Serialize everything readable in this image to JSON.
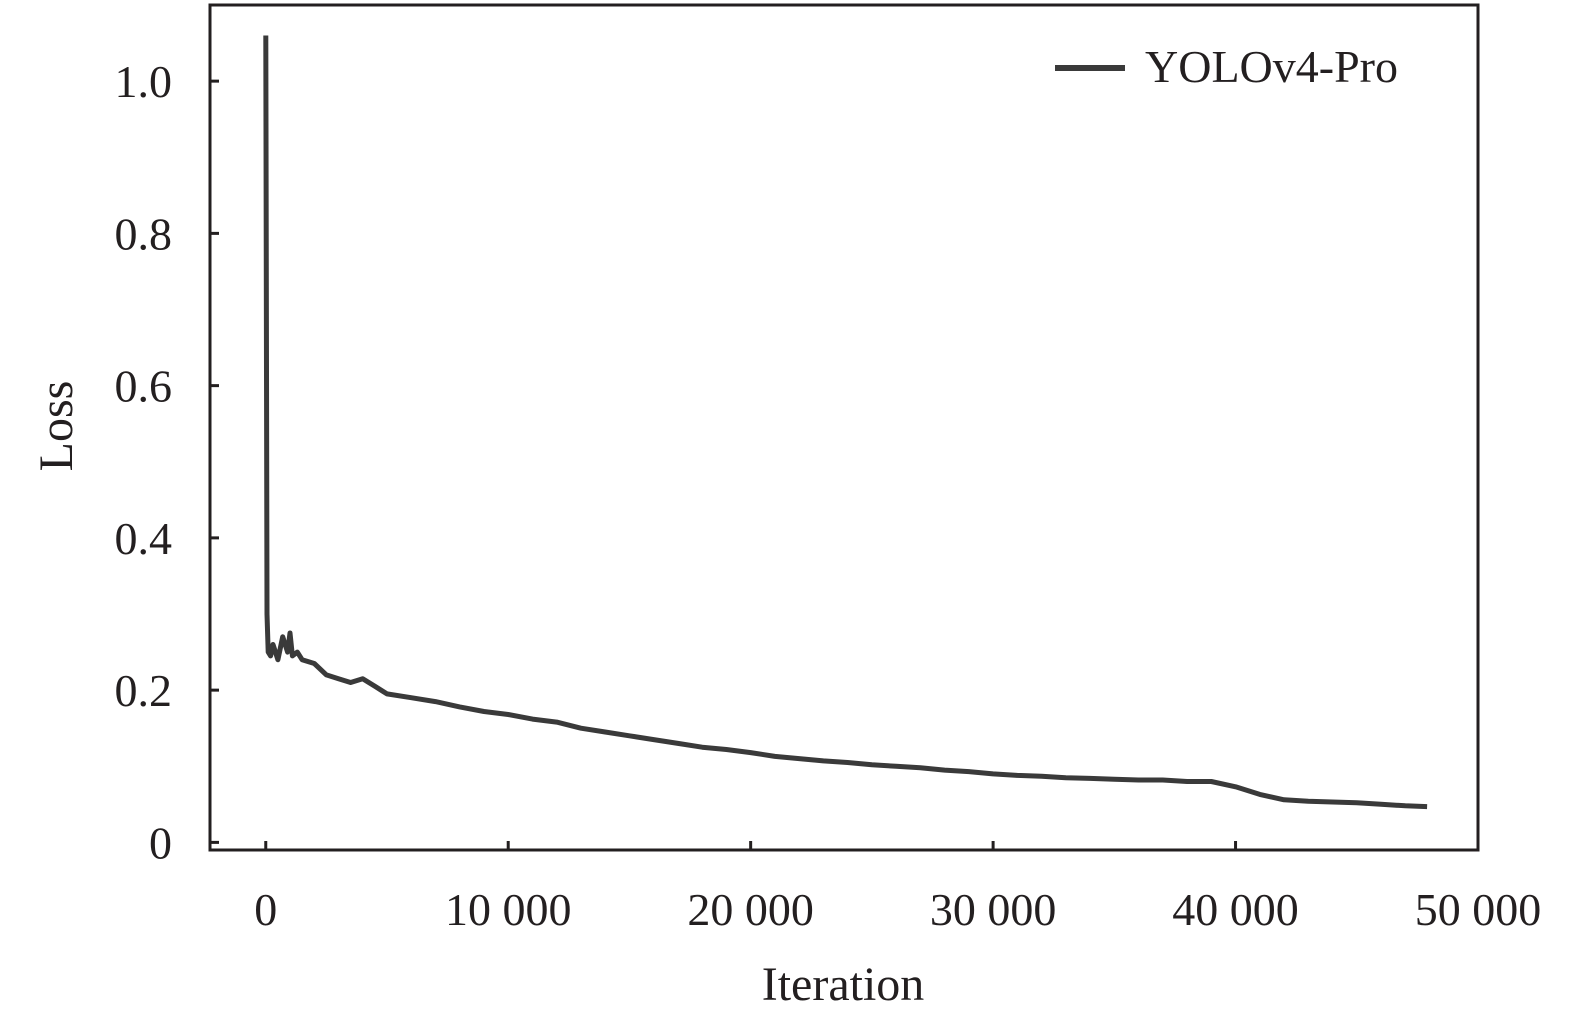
{
  "chart_data": {
    "type": "line",
    "title": "",
    "xlabel": "Iteration",
    "ylabel": "Loss",
    "xlim": [
      -2300,
      50000
    ],
    "ylim": [
      -0.01,
      1.1
    ],
    "x_ticks": [
      0,
      10000,
      20000,
      30000,
      40000,
      50000
    ],
    "x_tick_labels": [
      "0",
      "10 000",
      "20 000",
      "30 000",
      "40 000",
      "50 000"
    ],
    "y_ticks": [
      0,
      0.2,
      0.4,
      0.6,
      0.8,
      1.0
    ],
    "y_tick_labels": [
      "0",
      "0.2",
      "0.4",
      "0.6",
      "0.8",
      "1.0"
    ],
    "grid": false,
    "legend": {
      "position": "top-right"
    },
    "colors": {
      "series": "#3a3a3a",
      "axis": "#231f20"
    },
    "series": [
      {
        "name": "YOLOv4-Pro",
        "x": [
          0,
          50,
          100,
          200,
          300,
          500,
          700,
          900,
          1000,
          1100,
          1300,
          1500,
          2000,
          2500,
          3000,
          3500,
          4000,
          4500,
          5000,
          6000,
          7000,
          8000,
          9000,
          10000,
          11000,
          12000,
          13000,
          14000,
          15000,
          16000,
          17000,
          18000,
          19000,
          20000,
          21000,
          22000,
          23000,
          24000,
          25000,
          26000,
          27000,
          28000,
          29000,
          30000,
          31000,
          32000,
          33000,
          34000,
          35000,
          36000,
          37000,
          38000,
          39000,
          40000,
          41000,
          42000,
          43000,
          44000,
          45000,
          46000,
          47000,
          47900
        ],
        "y": [
          1.06,
          0.3,
          0.25,
          0.245,
          0.26,
          0.24,
          0.27,
          0.25,
          0.275,
          0.245,
          0.25,
          0.24,
          0.235,
          0.22,
          0.215,
          0.21,
          0.215,
          0.205,
          0.195,
          0.19,
          0.185,
          0.178,
          0.172,
          0.168,
          0.162,
          0.158,
          0.15,
          0.145,
          0.14,
          0.135,
          0.13,
          0.125,
          0.122,
          0.118,
          0.113,
          0.11,
          0.107,
          0.105,
          0.102,
          0.1,
          0.098,
          0.095,
          0.093,
          0.09,
          0.088,
          0.087,
          0.085,
          0.084,
          0.083,
          0.082,
          0.082,
          0.08,
          0.08,
          0.073,
          0.063,
          0.056,
          0.054,
          0.053,
          0.052,
          0.05,
          0.048,
          0.047
        ]
      }
    ]
  }
}
